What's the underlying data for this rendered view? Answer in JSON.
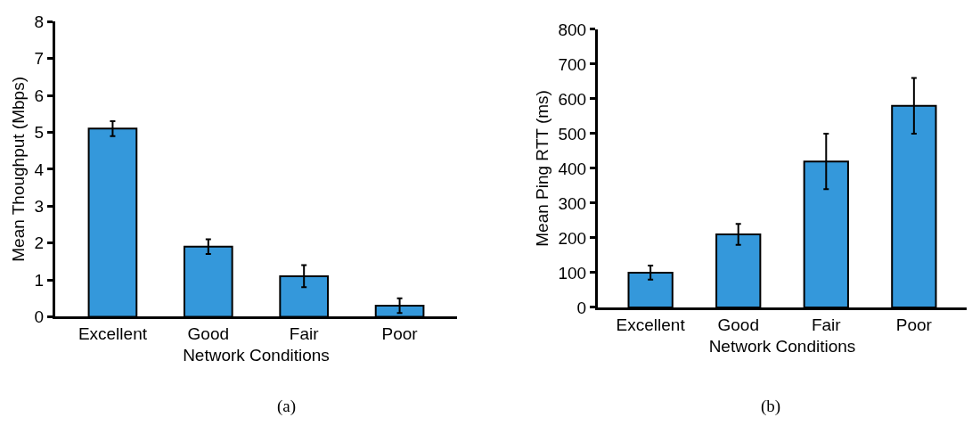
{
  "chart_data": [
    {
      "type": "bar",
      "categories": [
        "Excellent",
        "Good",
        "Fair",
        "Poor"
      ],
      "values": [
        5.1,
        1.9,
        1.1,
        0.3
      ],
      "errors": [
        0.2,
        0.2,
        0.3,
        0.2
      ],
      "color": "#3498db",
      "xlabel": "Network Conditions",
      "ylabel": "Mean Thoughput (Mbps)",
      "ylim": [
        0,
        8
      ],
      "yticks": [
        0,
        1,
        2,
        3,
        4,
        5,
        6,
        7,
        8
      ],
      "annotations": [
        "(a)"
      ]
    },
    {
      "type": "bar",
      "categories": [
        "Excellent",
        "Good",
        "Fair",
        "Poor"
      ],
      "values": [
        100,
        210,
        420,
        580
      ],
      "errors": [
        20,
        30,
        80,
        80
      ],
      "color": "#3498db",
      "xlabel": "Network Conditions",
      "ylabel": "Mean Ping RTT (ms)",
      "ylim": [
        0,
        800
      ],
      "yticks": [
        0,
        100,
        200,
        300,
        400,
        500,
        600,
        700,
        800
      ],
      "annotations": [
        "(b)"
      ]
    }
  ]
}
